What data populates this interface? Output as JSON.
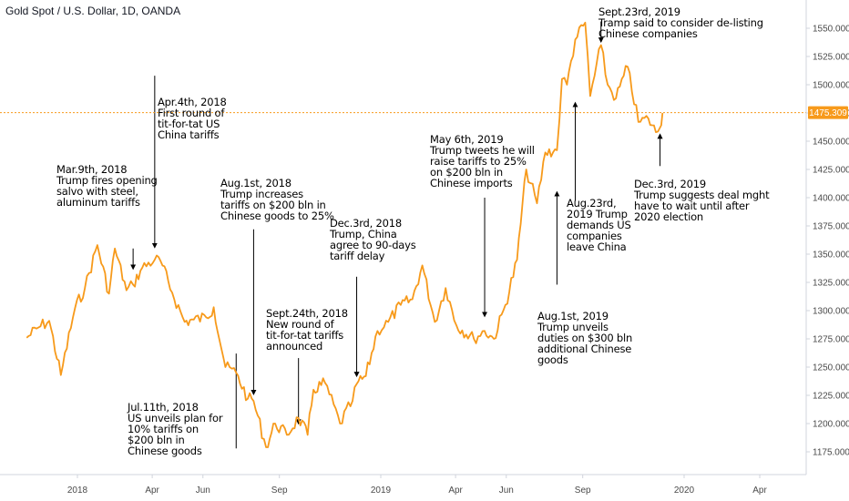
{
  "title": "Gold Spot / U.S. Dollar, 1D, OANDA",
  "colors": {
    "line": "#f79a1b",
    "price_tag": "#f79a1b",
    "axis": "#4a4a4a",
    "annotation": "#000000"
  },
  "chart_data": {
    "type": "line",
    "title": "Gold Spot / U.S. Dollar, 1D, OANDA",
    "xlabel": "",
    "ylabel": "",
    "y_range": [
      1160,
      1565
    ],
    "x_range": [
      "2017-11-01",
      "2020-06-01"
    ],
    "x_ticks": [
      "2018",
      "Apr",
      "Jun",
      "Sep",
      "2019",
      "Apr",
      "Jun",
      "Sep",
      "2020",
      "Apr"
    ],
    "y_ticks": [
      "1175.000",
      "1200.000",
      "1225.000",
      "1250.000",
      "1275.000",
      "1300.000",
      "1325.000",
      "1350.000",
      "1375.000",
      "1400.000",
      "1425.000",
      "1450.000",
      "1475.000",
      "1500.000",
      "1525.000",
      "1550.000"
    ],
    "last_price": "1475.309",
    "grid": false,
    "series": [
      {
        "dates": [
          "2017-11-01",
          "2017-11-15",
          "2017-11-28",
          "2017-12-12",
          "2017-12-29",
          "2018-01-10",
          "2018-01-25",
          "2018-02-08",
          "2018-02-15",
          "2018-03-01",
          "2018-03-09",
          "2018-03-20",
          "2018-04-04",
          "2018-04-11",
          "2018-04-25",
          "2018-05-10",
          "2018-05-21",
          "2018-06-05",
          "2018-06-14",
          "2018-06-28",
          "2018-07-11",
          "2018-07-25",
          "2018-08-01",
          "2018-08-16",
          "2018-08-27",
          "2018-09-10",
          "2018-09-24",
          "2018-10-05",
          "2018-10-12",
          "2018-10-26",
          "2018-11-13",
          "2018-11-28",
          "2018-12-03",
          "2018-12-14",
          "2018-12-28",
          "2019-01-10",
          "2019-01-25",
          "2019-02-08",
          "2019-02-20",
          "2019-03-07",
          "2019-03-20",
          "2019-04-02",
          "2019-04-23",
          "2019-05-06",
          "2019-05-17",
          "2019-05-31",
          "2019-06-14",
          "2019-06-25",
          "2019-07-08",
          "2019-07-18",
          "2019-08-01",
          "2019-08-07",
          "2019-08-13",
          "2019-08-23",
          "2019-09-04",
          "2019-09-10",
          "2019-09-23",
          "2019-10-01",
          "2019-10-11",
          "2019-10-25",
          "2019-11-07",
          "2019-11-19",
          "2019-11-28",
          "2019-12-03",
          "2019-12-06"
        ],
        "values": [
          1276,
          1285,
          1291,
          1243,
          1302,
          1320,
          1358,
          1315,
          1355,
          1318,
          1323,
          1338,
          1345,
          1344,
          1316,
          1290,
          1292,
          1294,
          1303,
          1250,
          1245,
          1222,
          1220,
          1179,
          1200,
          1190,
          1205,
          1190,
          1230,
          1236,
          1200,
          1220,
          1235,
          1242,
          1282,
          1290,
          1305,
          1310,
          1340,
          1290,
          1320,
          1287,
          1275,
          1282,
          1275,
          1305,
          1345,
          1425,
          1395,
          1440,
          1442,
          1505,
          1500,
          1540,
          1555,
          1490,
          1535,
          1500,
          1488,
          1516,
          1467,
          1470,
          1458,
          1462,
          1475
        ]
      }
    ]
  },
  "annotations": [
    {
      "lines": [
        "Mar.9th, 2018",
        "Trump fires opening",
        "salvo with steel,",
        "aluminum tariffs"
      ],
      "date": "2018-03-09",
      "arrow_from": 1355,
      "arrow_to": 1337
    },
    {
      "lines": [
        "Apr.4th, 2018",
        "First round of",
        "tit-for-tat US",
        "China tariffs"
      ],
      "date": "2018-04-04",
      "arrow_from": 1508,
      "arrow_to": 1356
    },
    {
      "lines": [
        "Aug.1st, 2018",
        "Trump increases",
        "tariffs on $200 bln in",
        "Chinese goods to 25%"
      ],
      "date": "2018-08-01",
      "arrow_from": 1372,
      "arrow_to": 1226
    },
    {
      "lines": [
        "Dec.3rd, 2018",
        "Trump, China",
        "agree to 90-days",
        "tariff delay"
      ],
      "date": "2018-12-03",
      "arrow_from": 1330,
      "arrow_to": 1242
    },
    {
      "lines": [
        "Sept.24th, 2018",
        "New round of",
        "tit-for-tat tariffs",
        "announced"
      ],
      "date": "2018-09-24",
      "arrow_from": 1258,
      "arrow_to": 1200
    },
    {
      "lines": [
        "Jul.11th, 2018",
        "US unveils plan for",
        "10% tariffs on",
        "$200 bln in",
        "Chinese goods"
      ],
      "date": "2018-07-11",
      "arrow_from": 1178,
      "arrow_to": 1262
    },
    {
      "lines": [
        "May 6th, 2019",
        "Trump tweets he will",
        "raise tariffs to 25%",
        "on $200 bln in",
        "Chinese imports"
      ],
      "date": "2019-05-06",
      "arrow_from": 1400,
      "arrow_to": 1295
    },
    {
      "lines": [
        "Aug.1st, 2019",
        "Trump unveils",
        "duties on $300 bln",
        "additional Chinese",
        "goods"
      ],
      "date": "2019-08-01",
      "arrow_from": 1323,
      "arrow_to": 1405
    },
    {
      "lines": [
        "Aug.23rd,",
        "2019 Trump",
        "demands US",
        "companies",
        "leave China"
      ],
      "date": "2019-08-23",
      "arrow_from": 1397,
      "arrow_to": 1484
    },
    {
      "lines": [
        "Sept.23rd, 2019",
        "Tramp said to consider de-listing",
        "Chinese companies"
      ],
      "date": "2019-09-23",
      "arrow_from": 1556,
      "arrow_to": 1538
    },
    {
      "lines": [
        "Dec.3rd, 2019",
        "Trump suggests deal mght",
        "have to wait until after",
        "2020 election"
      ],
      "date": "2019-12-03",
      "arrow_from": 1428,
      "arrow_to": 1456
    }
  ]
}
